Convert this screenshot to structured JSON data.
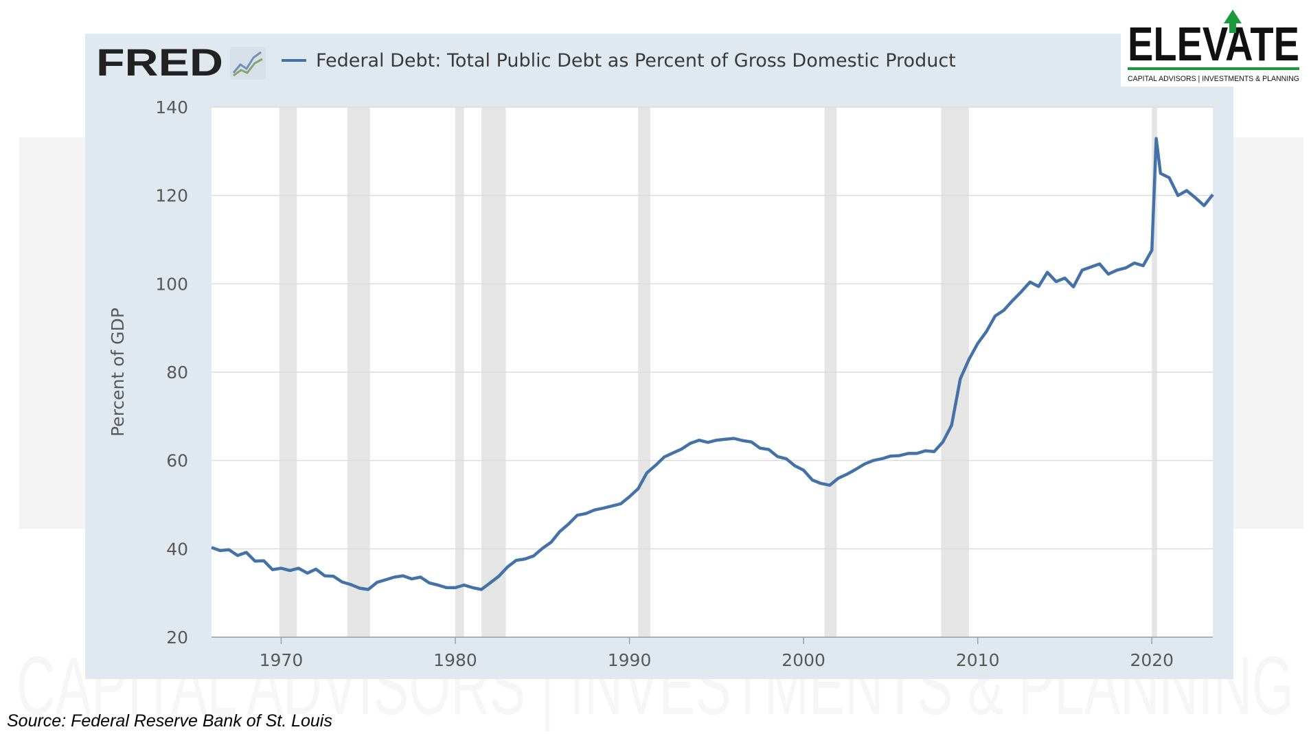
{
  "header": {
    "brand": "FRED",
    "legend_title": "Federal Debt: Total Public Debt as Percent of Gross Domestic Product"
  },
  "logo": {
    "name": "ELEVATE",
    "tagline": "CAPITAL ADVISORS | INVESTMENTS & PLANNING"
  },
  "watermark_text": "CAPITAL ADVISORS | INVESTMENTS & PLANNING",
  "source_note": "Source: Federal Reserve Bank of St. Louis",
  "colors": {
    "series": "#4472a8",
    "panel": "#e1e9f0",
    "recession": "#e5e5e5",
    "logo_green": "#1a9a3b"
  },
  "chart_data": {
    "type": "line",
    "title": "Federal Debt: Total Public Debt as Percent of Gross Domestic Product",
    "ylabel": "Percent of GDP",
    "xlabel": "",
    "ylim": [
      20,
      140
    ],
    "xlim": [
      1966.0,
      2023.5
    ],
    "yticks": [
      "20",
      "40",
      "60",
      "80",
      "100",
      "120",
      "140"
    ],
    "xticks": [
      "1970",
      "1980",
      "1990",
      "2000",
      "2010",
      "2020"
    ],
    "grid": true,
    "recessions": [
      [
        1969.9,
        1970.9
      ],
      [
        1973.8,
        1975.1
      ],
      [
        1980.0,
        1980.5
      ],
      [
        1981.5,
        1982.9
      ],
      [
        1990.5,
        1991.2
      ],
      [
        2001.2,
        2001.9
      ],
      [
        2007.9,
        2009.5
      ],
      [
        2020.0,
        2020.3
      ]
    ],
    "series": [
      {
        "name": "Federal Debt: Total Public Debt as Percent of Gross Domestic Product",
        "points": [
          [
            1966.0,
            40.3
          ],
          [
            1966.5,
            39.6
          ],
          [
            1967.0,
            39.8
          ],
          [
            1967.5,
            38.5
          ],
          [
            1968.0,
            39.2
          ],
          [
            1968.5,
            37.2
          ],
          [
            1969.0,
            37.3
          ],
          [
            1969.5,
            35.3
          ],
          [
            1970.0,
            35.6
          ],
          [
            1970.5,
            35.1
          ],
          [
            1971.0,
            35.6
          ],
          [
            1971.5,
            34.5
          ],
          [
            1972.0,
            35.4
          ],
          [
            1972.5,
            33.9
          ],
          [
            1973.0,
            33.8
          ],
          [
            1973.5,
            32.5
          ],
          [
            1974.0,
            31.9
          ],
          [
            1974.5,
            31.1
          ],
          [
            1975.0,
            30.8
          ],
          [
            1975.5,
            32.4
          ],
          [
            1976.0,
            33.0
          ],
          [
            1976.5,
            33.6
          ],
          [
            1977.0,
            33.9
          ],
          [
            1977.5,
            33.2
          ],
          [
            1978.0,
            33.6
          ],
          [
            1978.5,
            32.3
          ],
          [
            1979.0,
            31.8
          ],
          [
            1979.5,
            31.2
          ],
          [
            1980.0,
            31.2
          ],
          [
            1980.5,
            31.8
          ],
          [
            1981.0,
            31.2
          ],
          [
            1981.5,
            30.8
          ],
          [
            1982.0,
            32.3
          ],
          [
            1982.5,
            33.8
          ],
          [
            1983.0,
            35.9
          ],
          [
            1983.5,
            37.4
          ],
          [
            1984.0,
            37.7
          ],
          [
            1984.5,
            38.4
          ],
          [
            1985.0,
            40.1
          ],
          [
            1985.5,
            41.5
          ],
          [
            1986.0,
            43.9
          ],
          [
            1986.5,
            45.6
          ],
          [
            1987.0,
            47.6
          ],
          [
            1987.5,
            48.0
          ],
          [
            1988.0,
            48.8
          ],
          [
            1988.5,
            49.2
          ],
          [
            1989.0,
            49.7
          ],
          [
            1989.5,
            50.2
          ],
          [
            1990.0,
            51.8
          ],
          [
            1990.5,
            53.6
          ],
          [
            1991.0,
            57.2
          ],
          [
            1991.5,
            58.9
          ],
          [
            1992.0,
            60.8
          ],
          [
            1992.5,
            61.7
          ],
          [
            1993.0,
            62.6
          ],
          [
            1993.5,
            63.9
          ],
          [
            1994.0,
            64.6
          ],
          [
            1994.5,
            64.1
          ],
          [
            1995.0,
            64.6
          ],
          [
            1995.5,
            64.8
          ],
          [
            1996.0,
            65.0
          ],
          [
            1996.5,
            64.5
          ],
          [
            1997.0,
            64.2
          ],
          [
            1997.5,
            62.8
          ],
          [
            1998.0,
            62.5
          ],
          [
            1998.5,
            60.9
          ],
          [
            1999.0,
            60.4
          ],
          [
            1999.5,
            58.8
          ],
          [
            2000.0,
            57.8
          ],
          [
            2000.5,
            55.6
          ],
          [
            2001.0,
            54.8
          ],
          [
            2001.5,
            54.4
          ],
          [
            2002.0,
            56.0
          ],
          [
            2002.5,
            56.9
          ],
          [
            2003.0,
            58.0
          ],
          [
            2003.5,
            59.2
          ],
          [
            2004.0,
            60.0
          ],
          [
            2004.5,
            60.4
          ],
          [
            2005.0,
            61.0
          ],
          [
            2005.5,
            61.1
          ],
          [
            2006.0,
            61.6
          ],
          [
            2006.5,
            61.6
          ],
          [
            2007.0,
            62.2
          ],
          [
            2007.5,
            62.0
          ],
          [
            2008.0,
            64.2
          ],
          [
            2008.5,
            68.0
          ],
          [
            2009.0,
            78.5
          ],
          [
            2009.5,
            82.9
          ],
          [
            2010.0,
            86.5
          ],
          [
            2010.5,
            89.2
          ],
          [
            2011.0,
            92.7
          ],
          [
            2011.5,
            94.0
          ],
          [
            2012.0,
            96.2
          ],
          [
            2012.5,
            98.2
          ],
          [
            2013.0,
            100.4
          ],
          [
            2013.5,
            99.4
          ],
          [
            2014.0,
            102.6
          ],
          [
            2014.5,
            100.5
          ],
          [
            2015.0,
            101.3
          ],
          [
            2015.5,
            99.3
          ],
          [
            2016.0,
            103.1
          ],
          [
            2016.5,
            103.8
          ],
          [
            2017.0,
            104.5
          ],
          [
            2017.5,
            102.2
          ],
          [
            2018.0,
            103.1
          ],
          [
            2018.5,
            103.6
          ],
          [
            2019.0,
            104.7
          ],
          [
            2019.5,
            104.1
          ],
          [
            2020.0,
            107.6
          ],
          [
            2020.25,
            132.9
          ],
          [
            2020.5,
            125.0
          ],
          [
            2021.0,
            124.0
          ],
          [
            2021.5,
            120.0
          ],
          [
            2022.0,
            121.1
          ],
          [
            2022.5,
            119.5
          ],
          [
            2023.0,
            117.7
          ],
          [
            2023.5,
            120.2
          ]
        ]
      }
    ]
  }
}
